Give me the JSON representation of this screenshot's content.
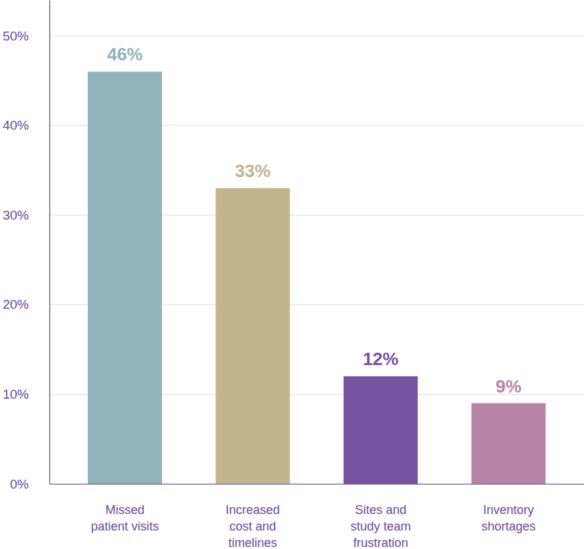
{
  "chart_data": {
    "type": "bar",
    "categories": [
      "Missed\npatient visits",
      "Increased\ncost and\ntimelines",
      "Sites and\nstudy team\nfrustration",
      "Inventory\nshortages"
    ],
    "values": [
      46,
      33,
      12,
      9
    ],
    "value_labels": [
      "46%",
      "33%",
      "12%",
      "9%"
    ],
    "colors": [
      "#93b3bc",
      "#c2b48b",
      "#7553a0",
      "#b784a7"
    ],
    "ylim": [
      0,
      54
    ],
    "yticks": [
      {
        "value": 0,
        "label": "0%"
      },
      {
        "value": 10,
        "label": "10%"
      },
      {
        "value": 20,
        "label": "20%"
      },
      {
        "value": 30,
        "label": "30%"
      },
      {
        "value": 40,
        "label": "40%"
      },
      {
        "value": 50,
        "label": "50%"
      }
    ],
    "grid": true,
    "data_labels": true
  }
}
